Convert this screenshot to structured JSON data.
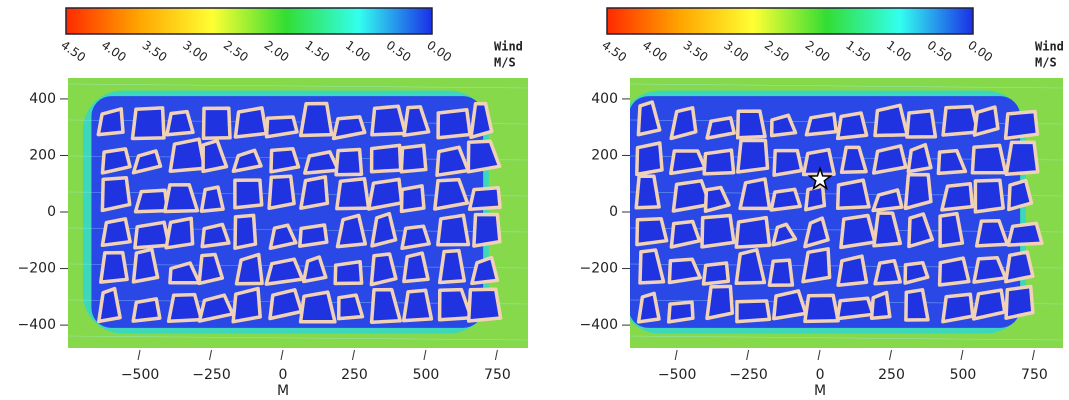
{
  "chart_data": [
    {
      "type": "field",
      "xlabel": "M",
      "xlim": [
        -752,
        857
      ],
      "ylim": [
        -481,
        474
      ],
      "xticks": [
        {
          "value": -500,
          "label": "−500"
        },
        {
          "value": -250,
          "label": "−250"
        },
        0,
        250,
        500,
        750
      ],
      "yticks": [
        {
          "value": -400,
          "label": "−400"
        },
        {
          "value": -200,
          "label": "−200"
        },
        0,
        200,
        400
      ],
      "colorbar_label": [
        "Wind",
        "M/S"
      ],
      "clim": [
        4.5,
        0
      ],
      "colorscale": [
        "#ff2a00",
        "#ffa500",
        "#ffff33",
        "#33dd33",
        "#33ffee",
        "#1a2fe8"
      ],
      "colorbar_ticks": [
        {
          "value": 4.5,
          "label": "4.50"
        },
        {
          "value": 4,
          "label": "4.00"
        },
        {
          "value": 3.5,
          "label": "3.50"
        },
        {
          "value": 3,
          "label": "3.00"
        },
        {
          "value": 2.5,
          "label": "2.50"
        },
        {
          "value": 2,
          "label": "2.00"
        },
        {
          "value": 1.5,
          "label": "1.50"
        },
        {
          "value": 1,
          "label": "1.00"
        },
        {
          "value": 0.5,
          "label": "0.50"
        },
        {
          "value": 0,
          "label": "0.00"
        }
      ]
    },
    {
      "type": "field",
      "xlabel": "M",
      "xlim": [
        -665,
        850
      ],
      "ylim": [
        -481,
        474
      ],
      "xticks": [
        {
          "value": -500,
          "label": "−500"
        },
        {
          "value": -250,
          "label": "−250"
        },
        0,
        250,
        500,
        750
      ],
      "yticks": [
        {
          "value": -400,
          "label": "−400"
        },
        {
          "value": -200,
          "label": "−200"
        },
        0,
        200,
        400
      ],
      "colorbar_label": [
        "Wind",
        "M/S"
      ],
      "clim": [
        4.5,
        0
      ],
      "colorscale": [
        "#ff2a00",
        "#ffa500",
        "#ffff33",
        "#33dd33",
        "#33ffee",
        "#1a2fe8"
      ],
      "colorbar_ticks": [
        {
          "value": 4.5,
          "label": "4.50"
        },
        {
          "value": 4,
          "label": "4.00"
        },
        {
          "value": 3.5,
          "label": "3.50"
        },
        {
          "value": 3,
          "label": "3.00"
        },
        {
          "value": 2.5,
          "label": "2.50"
        },
        {
          "value": 2,
          "label": "2.00"
        },
        {
          "value": 1.5,
          "label": "1.50"
        },
        {
          "value": 1,
          "label": "1.00"
        },
        {
          "value": 0.5,
          "label": "0.50"
        },
        {
          "value": 0,
          "label": "0.00"
        }
      ],
      "marker": {
        "x": 0,
        "y": 115
      }
    }
  ]
}
